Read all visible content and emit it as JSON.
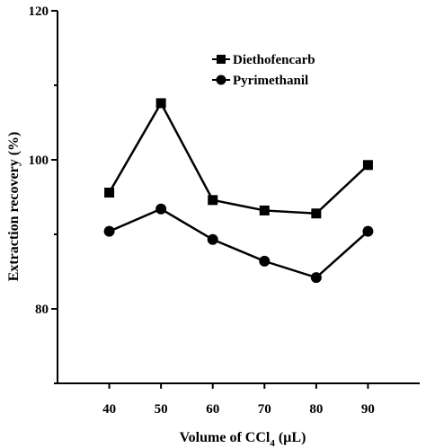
{
  "chart_data": {
    "type": "line",
    "x": [
      40,
      50,
      60,
      70,
      80,
      90
    ],
    "series": [
      {
        "name": "Diethofencarb",
        "marker": "square",
        "values": [
          95.6,
          107.6,
          94.6,
          93.2,
          92.8,
          99.3
        ]
      },
      {
        "name": "Pyrimethanil",
        "marker": "circle",
        "values": [
          90.4,
          93.4,
          89.3,
          86.4,
          84.2,
          90.4
        ]
      }
    ],
    "xlabel_main": "Volume of CCl",
    "xlabel_sub": "4",
    "xlabel_unit": " (µL)",
    "ylabel": "Extraction recovery (%)",
    "xlim": [
      30,
      100
    ],
    "ylim": [
      70,
      120
    ],
    "xticks": [
      40,
      50,
      60,
      70,
      80,
      90
    ],
    "yticks": [
      80,
      100,
      120
    ],
    "grid": false,
    "legend_position": "top-right",
    "colors": {
      "line": "#000000",
      "background": "#ffffff"
    }
  }
}
